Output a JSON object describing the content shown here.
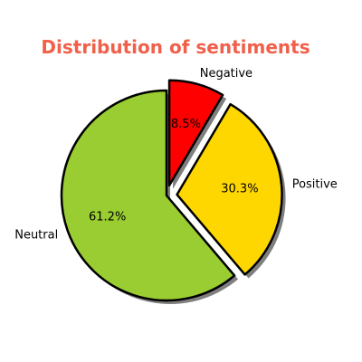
{
  "chart_data": {
    "type": "pie",
    "title": "Distribution of sentiments",
    "title_color": "#F0604B",
    "slices": [
      {
        "label": "Negative",
        "value": 8.5,
        "pct_label": "8.5%",
        "color": "#FF0000",
        "exploded": true
      },
      {
        "label": "Positive",
        "value": 30.3,
        "pct_label": "30.3%",
        "color": "#FFD700",
        "exploded": true
      },
      {
        "label": "Neutral",
        "value": 61.2,
        "pct_label": "61.2%",
        "color": "#9ACD32",
        "exploded": false
      }
    ],
    "start_angle_deg": 90,
    "direction": "clockwise",
    "edge_color": "#000000",
    "shadow": true,
    "legend": "none"
  }
}
